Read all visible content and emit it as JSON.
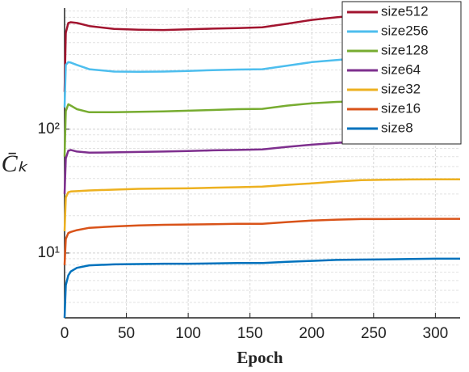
{
  "chart_data": {
    "type": "line",
    "xlabel": "Epoch",
    "ylabel": "C̄ₖ",
    "log_y": true,
    "grid": true,
    "legend": "upper right",
    "xlim": [
      0,
      320
    ],
    "ylim": [
      3,
      950
    ],
    "xticks": [
      0,
      50,
      100,
      150,
      200,
      250,
      300
    ],
    "yticks": [
      {
        "value": 10,
        "label": "10¹"
      },
      {
        "value": 100,
        "label": "10²"
      }
    ],
    "yticks_minor": [
      4,
      5,
      6,
      7,
      8,
      9,
      20,
      30,
      40,
      50,
      60,
      70,
      80,
      90,
      200,
      300,
      400,
      500,
      600,
      700,
      800,
      900
    ],
    "x": [
      0,
      1,
      3,
      5,
      10,
      20,
      40,
      60,
      80,
      100,
      120,
      140,
      160,
      180,
      200,
      220,
      240,
      260,
      280,
      300,
      320
    ],
    "series": [
      {
        "name": "size512",
        "color": "#a2142f",
        "values": [
          200,
          600,
          720,
          730,
          720,
          680,
          645,
          636,
          632,
          640,
          648,
          655,
          665,
          710,
          763,
          800,
          832,
          860,
          880,
          900,
          913
        ]
      },
      {
        "name": "size256",
        "color": "#4dbeee",
        "values": [
          150,
          330,
          348,
          345,
          330,
          305,
          292,
          291,
          292,
          295,
          300,
          303,
          305,
          325,
          348,
          362,
          376,
          388,
          395,
          400,
          405
        ]
      },
      {
        "name": "size128",
        "color": "#77ac30",
        "values": [
          60,
          140,
          159,
          155,
          145,
          137,
          137,
          138,
          139,
          141,
          143,
          145,
          146,
          155,
          162,
          166,
          168,
          171,
          173,
          175,
          177
        ]
      },
      {
        "name": "size64",
        "color": "#7e2f8e",
        "values": [
          30,
          58,
          67,
          68,
          66,
          64.6,
          65,
          65.5,
          66,
          66.6,
          67.5,
          68,
          68.7,
          72,
          75,
          77.5,
          79.8,
          80.8,
          81.5,
          82,
          82
        ]
      },
      {
        "name": "size32",
        "color": "#edb120",
        "values": [
          15,
          28,
          31,
          31.4,
          31.6,
          32,
          32.5,
          33,
          33.2,
          33.3,
          33.7,
          34,
          34.4,
          35.5,
          36.5,
          37.8,
          38.8,
          39.1,
          39.3,
          39.4,
          39.4
        ]
      },
      {
        "name": "size16",
        "color": "#d95319",
        "values": [
          8,
          13,
          14.5,
          14.8,
          15.3,
          16,
          16.4,
          16.7,
          16.9,
          17,
          17.1,
          17.2,
          17.2,
          17.8,
          18.3,
          18.6,
          18.8,
          18.8,
          18.9,
          18.9,
          18.9
        ]
      },
      {
        "name": "size8",
        "color": "#0072bd",
        "values": [
          3,
          5.5,
          6.6,
          7.1,
          7.6,
          7.96,
          8.1,
          8.15,
          8.2,
          8.2,
          8.25,
          8.3,
          8.3,
          8.5,
          8.65,
          8.8,
          8.86,
          8.9,
          8.95,
          9,
          9
        ]
      }
    ]
  }
}
